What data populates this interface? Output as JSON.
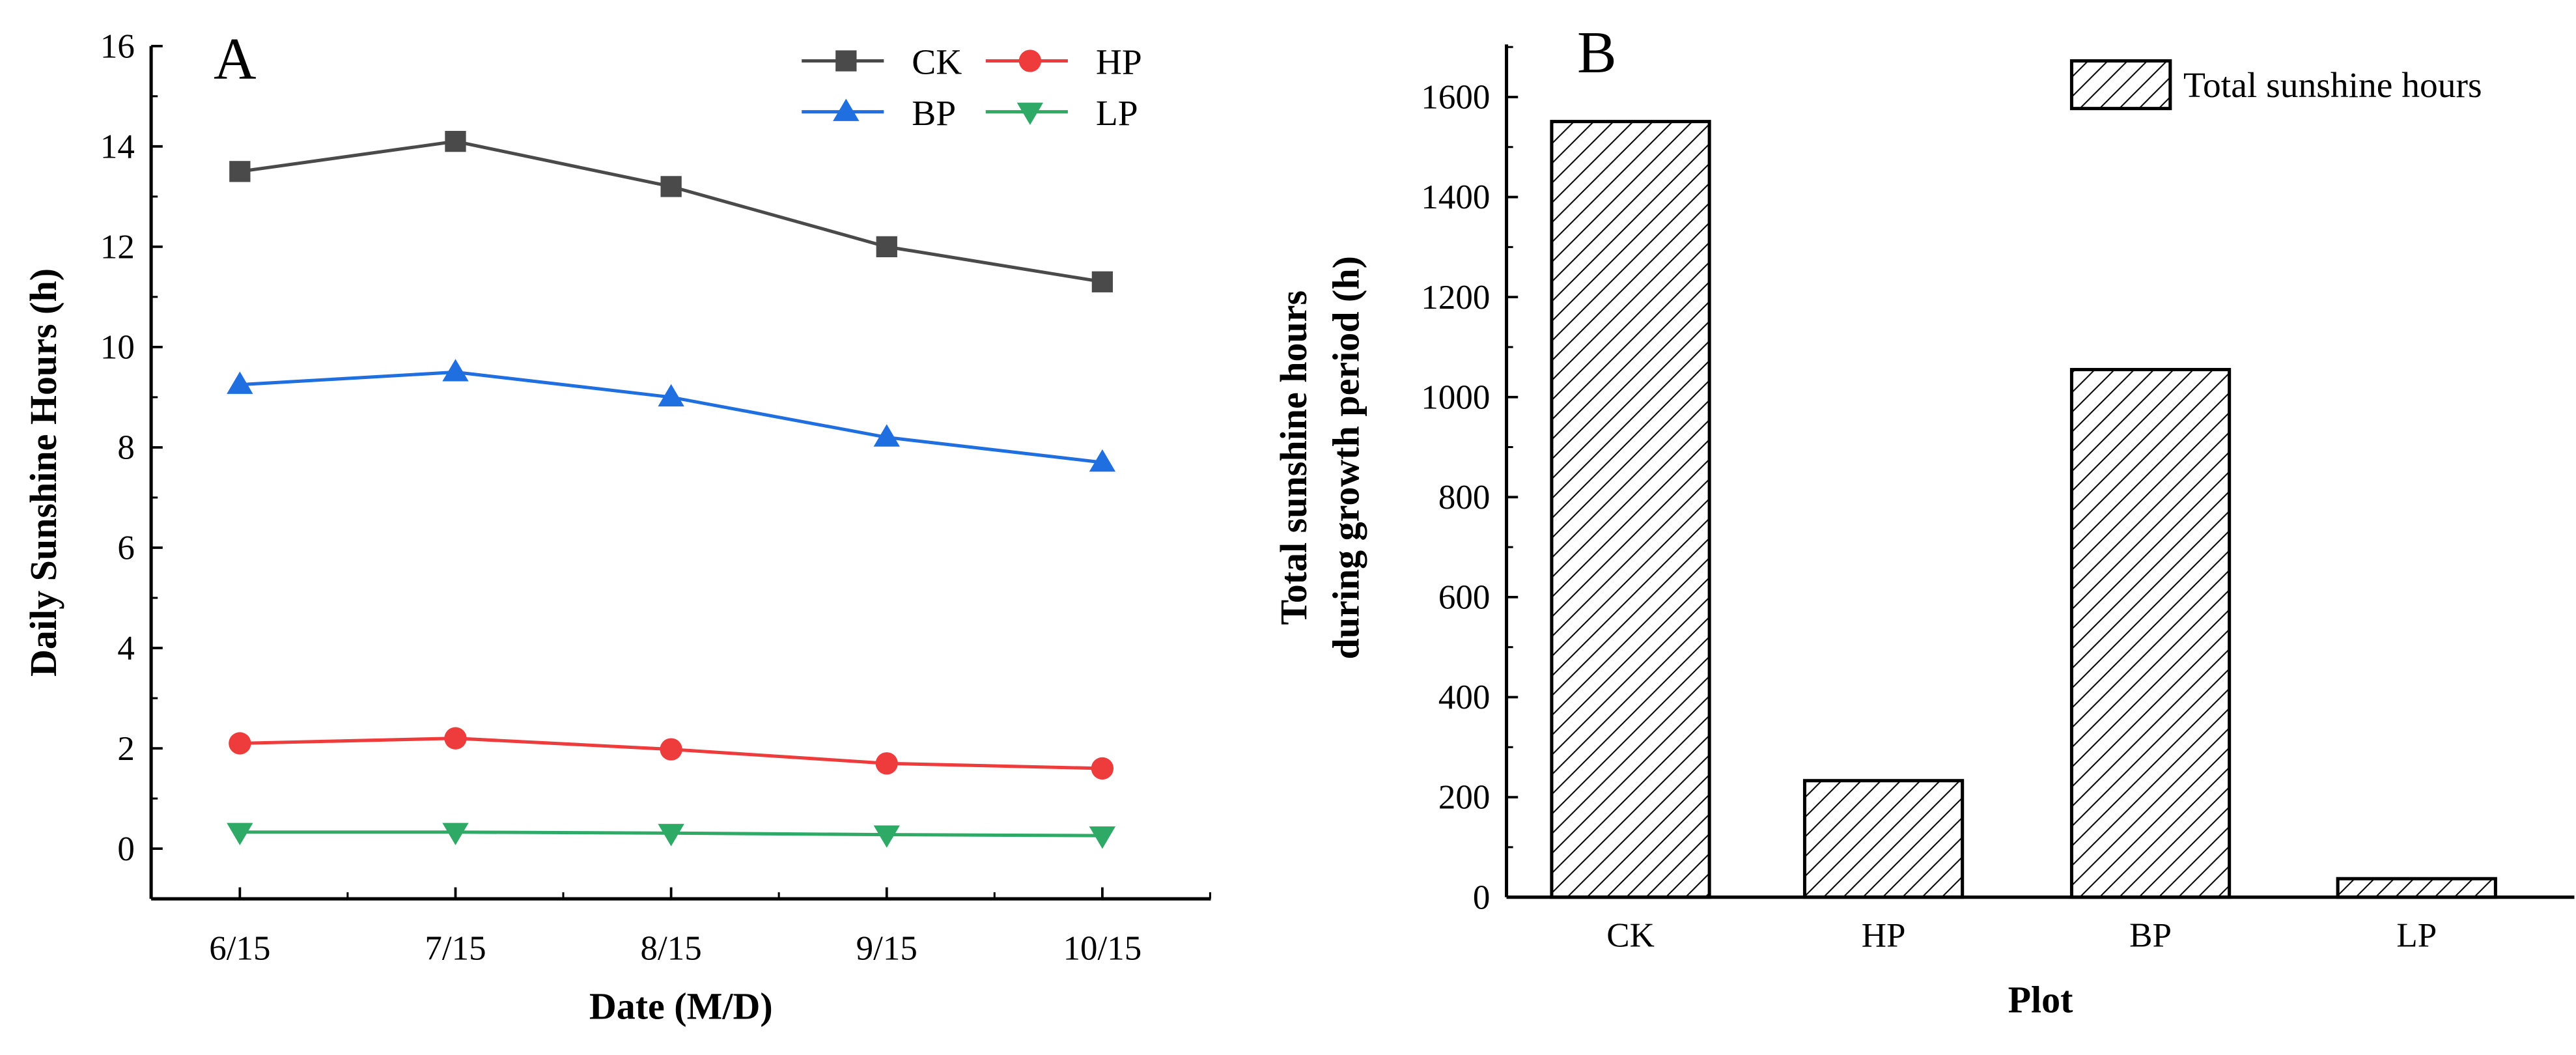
{
  "chart_data": [
    {
      "type": "line",
      "panel_label": "A",
      "xlabel": "Date (M/D)",
      "ylabel": "Daily Sunshine Hours  (h)",
      "categories": [
        "6/15",
        "7/15",
        "8/15",
        "9/15",
        "10/15"
      ],
      "ylim": [
        -1,
        16
      ],
      "yticks": [
        0,
        2,
        4,
        6,
        8,
        10,
        12,
        14,
        16
      ],
      "legend_position": "top-right",
      "series": [
        {
          "name": "CK",
          "color": "#4a4a4a",
          "marker": "square",
          "values": [
            13.5,
            14.1,
            13.2,
            12.0,
            11.3
          ]
        },
        {
          "name": "HP",
          "color": "#ee3b3b",
          "marker": "circle",
          "values": [
            2.1,
            2.2,
            1.98,
            1.7,
            1.6
          ]
        },
        {
          "name": "BP",
          "color": "#1f6fe0",
          "marker": "triangle-up",
          "values": [
            9.25,
            9.5,
            9.0,
            8.2,
            7.7
          ]
        },
        {
          "name": "LP",
          "color": "#2eaa66",
          "marker": "triangle-down",
          "values": [
            0.33,
            0.33,
            0.31,
            0.28,
            0.26
          ]
        }
      ]
    },
    {
      "type": "bar",
      "panel_label": "B",
      "xlabel": "Plot",
      "ylabel_lines": [
        "Total sunshine hours",
        "during growth period (h)"
      ],
      "categories": [
        "CK",
        "HP",
        "BP",
        "LP"
      ],
      "values": [
        1551,
        233,
        1055,
        37
      ],
      "ylim": [
        0,
        1700
      ],
      "yticks": [
        0,
        200,
        400,
        600,
        800,
        1000,
        1200,
        1400,
        1600
      ],
      "legend": "Total sunshine hours",
      "legend_position": "top-right",
      "fill": "hatched"
    }
  ]
}
